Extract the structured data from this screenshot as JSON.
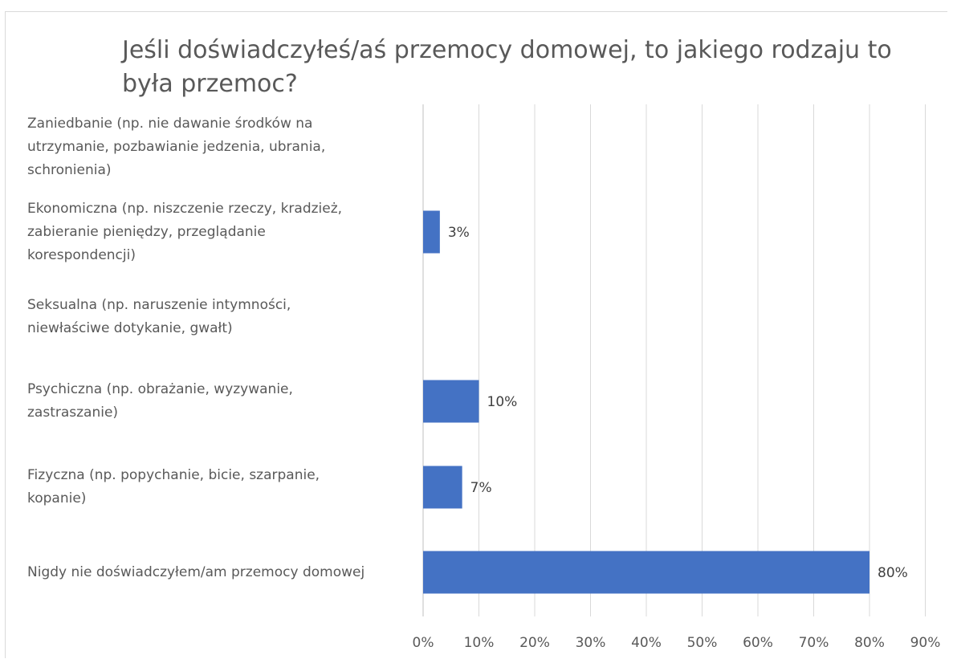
{
  "chart_data": {
    "type": "bar",
    "orientation": "horizontal",
    "title": "Jeśli doświadczyłeś/aś przemocy domowej, to jakiego rodzaju to była przemoc?",
    "categories": [
      "Zaniedbanie (np. nie dawanie środków na utrzymanie, pozbawianie jedzenia, ubrania, schronienia)",
      "Ekonomiczna (np. niszczenie rzeczy, kradzież, zabieranie pieniędzy, przeglądanie korespondencji)",
      "Seksualna (np. naruszenie intymności, niewłaściwe dotykanie, gwałt)",
      "Psychiczna (np. obrażanie, wyzywanie, zastraszanie)",
      "Fizyczna (np. popychanie, bicie, szarpanie, kopanie)",
      "Nigdy nie doświadczyłem/am przemocy domowej"
    ],
    "category_lines": [
      [
        "Zaniedbanie (np. nie dawanie środków na",
        "utrzymanie, pozbawianie jedzenia, ubrania,",
        "schronienia)"
      ],
      [
        "Ekonomiczna (np. niszczenie rzeczy, kradzież,",
        "zabieranie pieniędzy, przeglądanie",
        "korespondencji)"
      ],
      [
        "Seksualna (np. naruszenie intymności,",
        "niewłaściwe dotykanie, gwałt)"
      ],
      [
        "Psychiczna (np. obrażanie, wyzywanie,",
        "zastraszanie)"
      ],
      [
        "Fizyczna (np. popychanie, bicie, szarpanie,",
        "kopanie)"
      ],
      [
        "Nigdy nie doświadczyłem/am przemocy domowej"
      ]
    ],
    "values": [
      0,
      3,
      0,
      10,
      7,
      80
    ],
    "data_labels": [
      "",
      "3%",
      "",
      "10%",
      "7%",
      "80%"
    ],
    "xlim": [
      0,
      90
    ],
    "x_ticks": [
      0,
      10,
      20,
      30,
      40,
      50,
      60,
      70,
      80,
      90
    ],
    "x_tick_labels": [
      "0%",
      "10%",
      "20%",
      "30%",
      "40%",
      "50%",
      "60%",
      "70%",
      "80%",
      "90%"
    ],
    "xlabel": "",
    "ylabel": "",
    "grid": true,
    "legend": "none",
    "colors": {
      "bar": "#4472c4",
      "grid": "#d9d9d9",
      "text": "#595959"
    }
  }
}
